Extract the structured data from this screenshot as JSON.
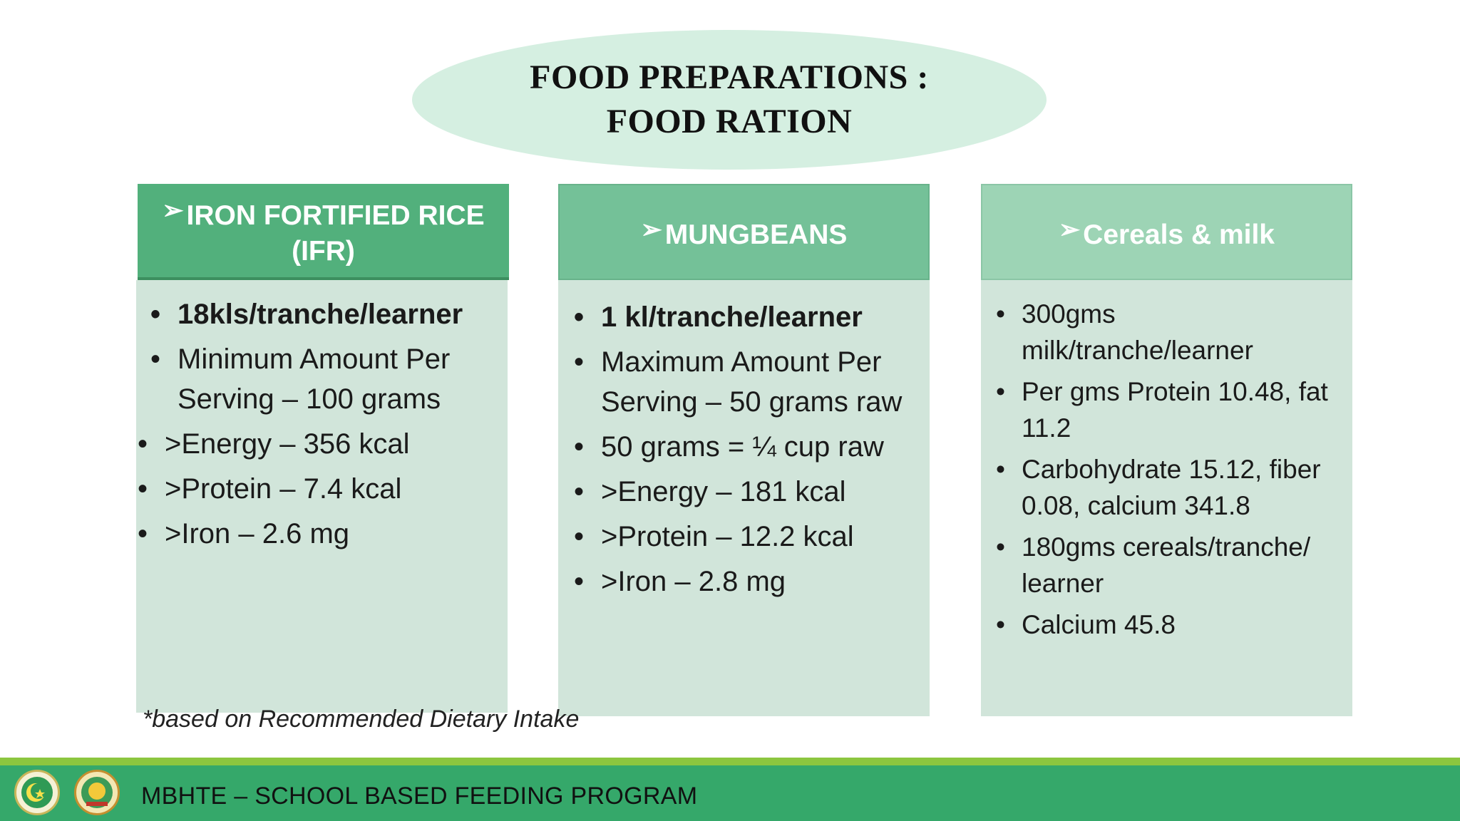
{
  "title": {
    "line1": "FOOD PREPARATIONS :",
    "line2": "FOOD RATION"
  },
  "columns": [
    {
      "header_line1": "IRON FORTIFIED RICE",
      "header_line2": "(IFR)",
      "items": [
        "18kls/tranche/learner",
        "Minimum Amount Per Serving – 100 grams"
      ],
      "subitems": [
        ">Energy – 356 kcal",
        ">Protein – 7.4 kcal",
        ">Iron – 2.6 mg"
      ]
    },
    {
      "header": "MUNGBEANS",
      "items": [
        "1 kl/tranche/learner",
        "Maximum Amount Per Serving – 50 grams raw",
        "50 grams = ¼ cup raw",
        ">Energy – 181 kcal",
        ">Protein – 12.2 kcal",
        ">Iron – 2.8 mg"
      ]
    },
    {
      "header": "Cereals & milk",
      "items": [
        "300gms milk/tranche/learner",
        "Per gms Protein 10.48, fat 11.2",
        "Carbohydrate 15.12, fiber 0.08, calcium 341.8",
        "180gms cereals/tranche/ learner",
        "Calcium 45.8"
      ]
    }
  ],
  "footnote": "*based on Recommended Dietary Intake",
  "footer": {
    "text": "MBHTE – SCHOOL BASED FEEDING PROGRAM"
  },
  "icons": {
    "arrow": "➢",
    "bullet": "•"
  },
  "colors": {
    "header_1": "#52b07c",
    "header_2": "#74c198",
    "header_3": "#9dd4b5",
    "body": "#d1e5da",
    "title_ellipse": "#d5efe1",
    "footer_bar": "#35a86a",
    "footer_stripe": "#8cc63f"
  }
}
